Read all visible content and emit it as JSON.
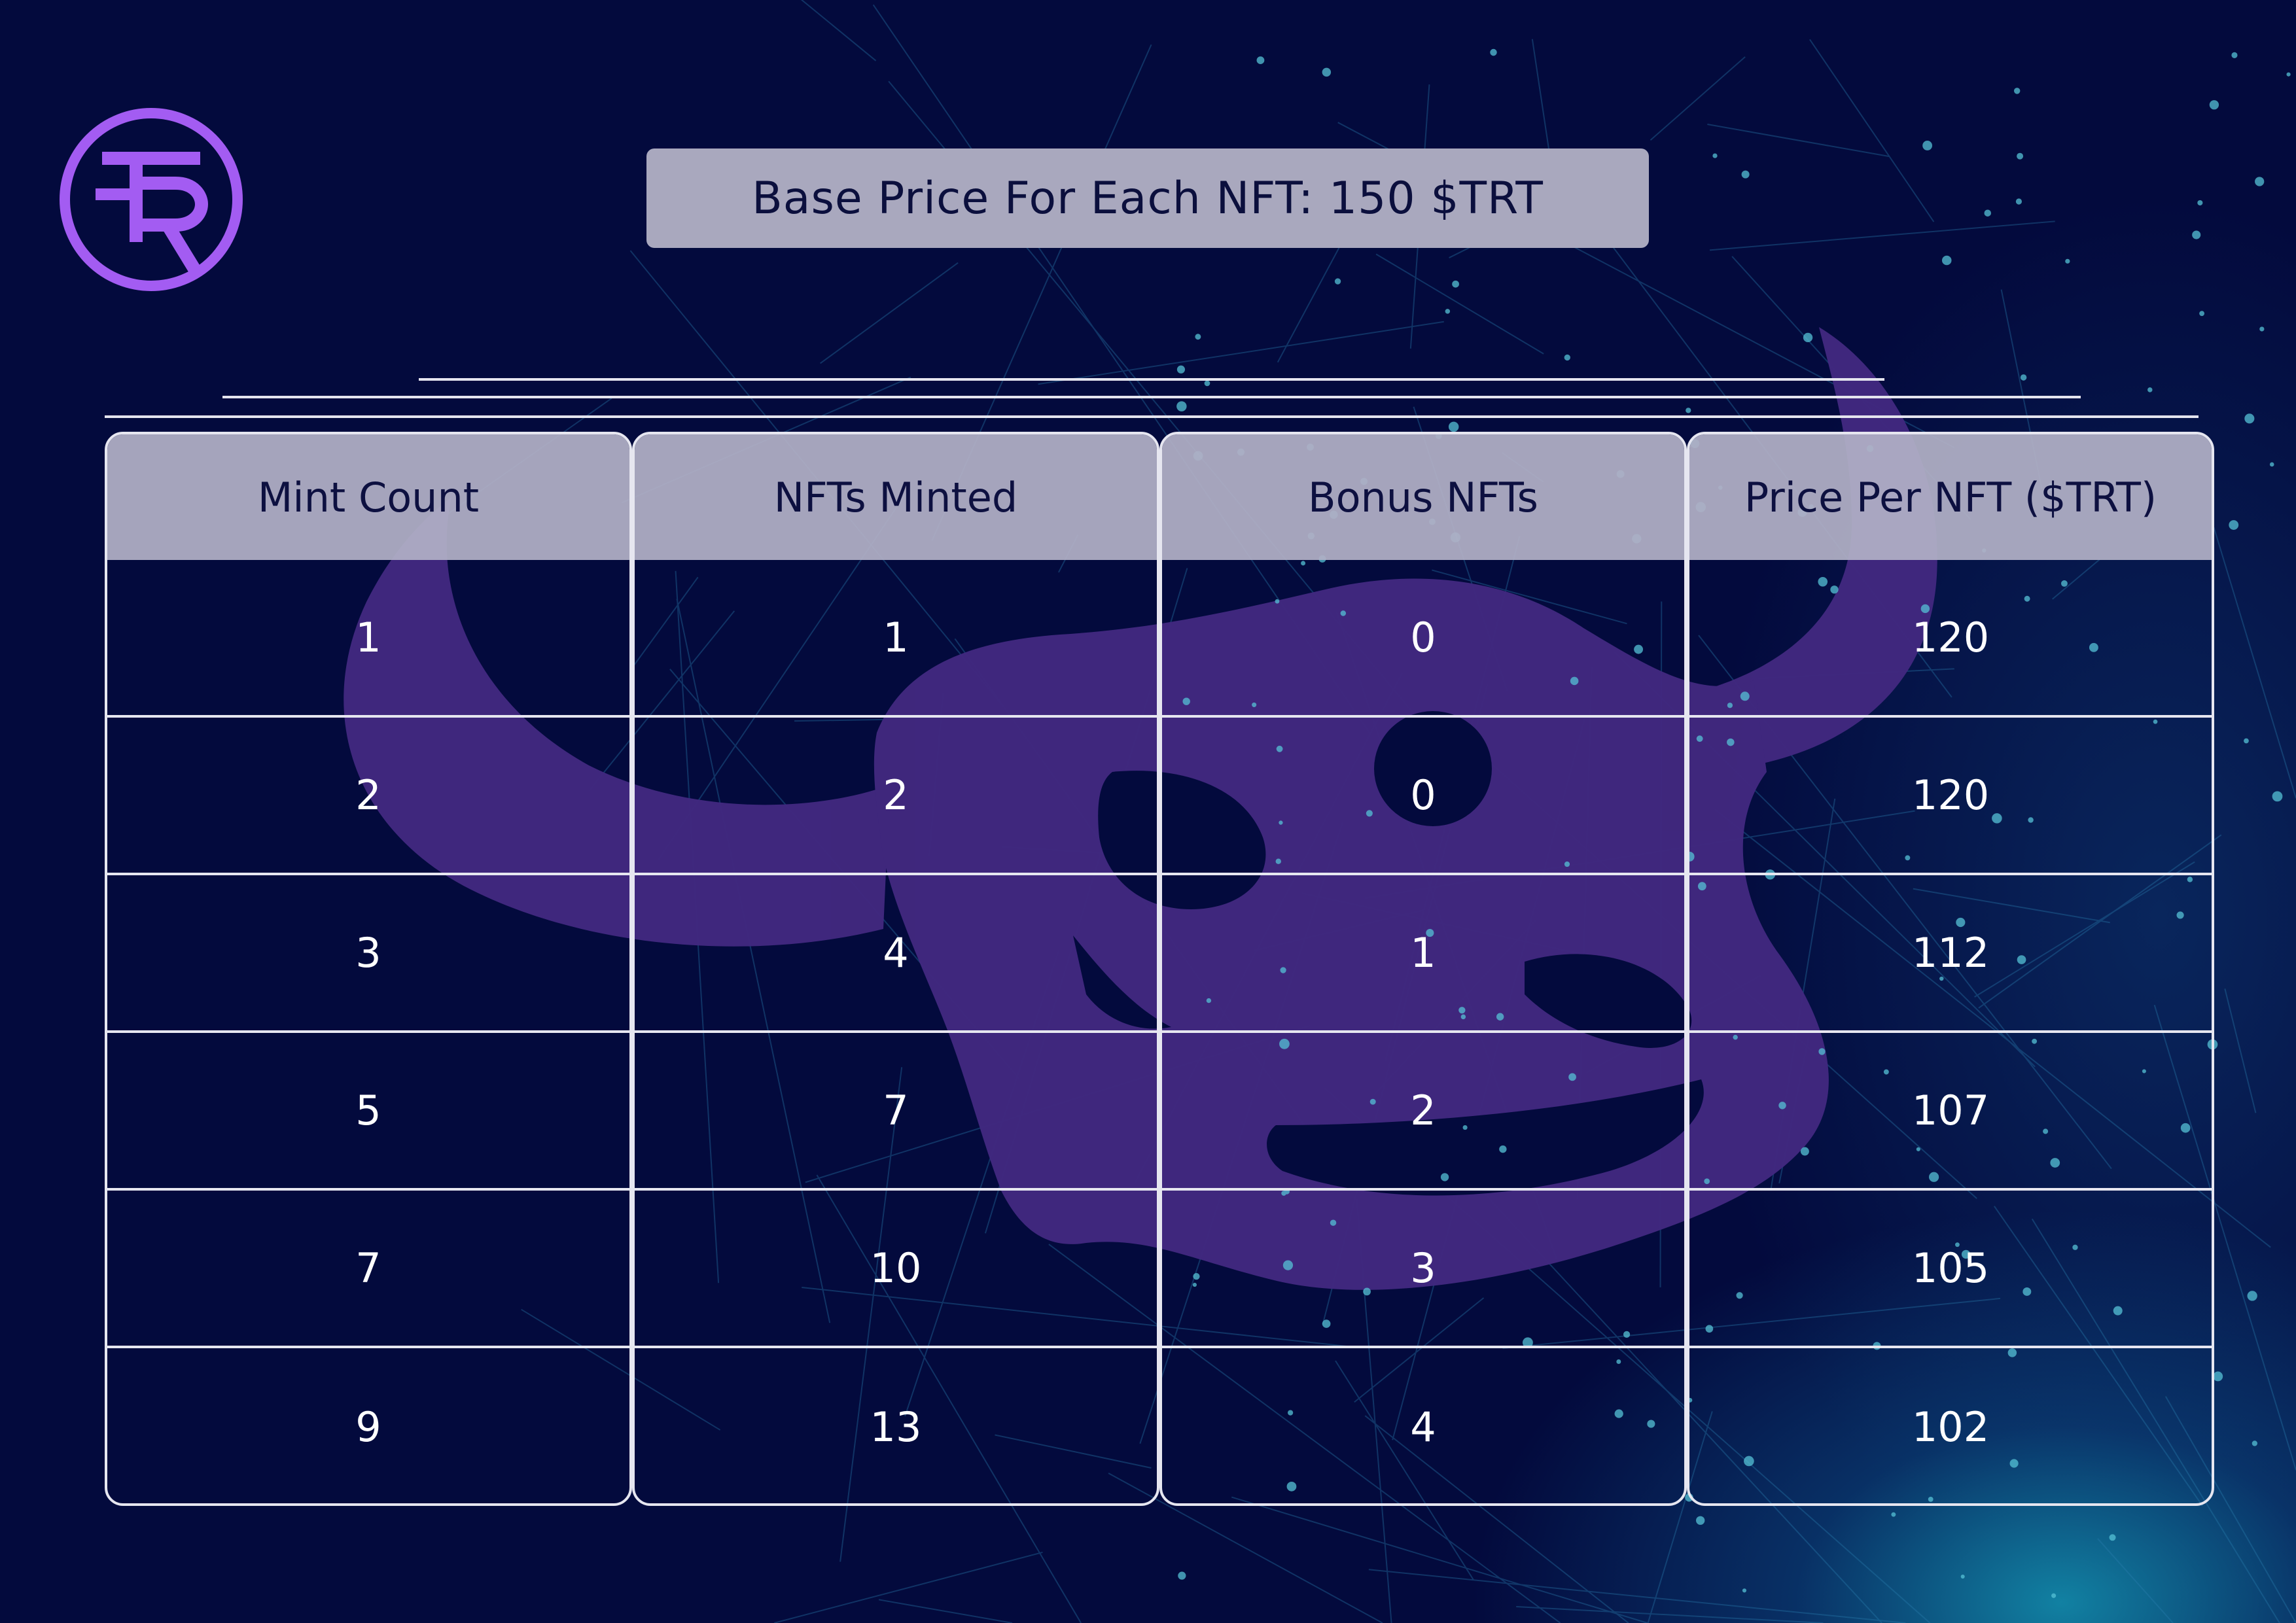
{
  "brand": {
    "logo_icon": "tr-monogram-logo-icon",
    "logo_letters": "TR",
    "accent_color": "#a35cf2"
  },
  "banner": {
    "text": "Base Price For Each NFT: 150 $TRT"
  },
  "background": {
    "watermark_icon": "bull-skull-icon",
    "watermark_color": "#41287f",
    "base_color": "#030a3d",
    "glow_color": "#1596b4"
  },
  "table": {
    "headers": [
      "Mint Count",
      "NFTs Minted",
      "Bonus NFTs",
      "Price Per NFT ($TRT)"
    ],
    "rows": [
      [
        "1",
        "1",
        "0",
        "120"
      ],
      [
        "2",
        "2",
        "0",
        "120"
      ],
      [
        "3",
        "4",
        "1",
        "112"
      ],
      [
        "5",
        "7",
        "2",
        "107"
      ],
      [
        "7",
        "10",
        "3",
        "105"
      ],
      [
        "9",
        "13",
        "4",
        "102"
      ]
    ]
  }
}
